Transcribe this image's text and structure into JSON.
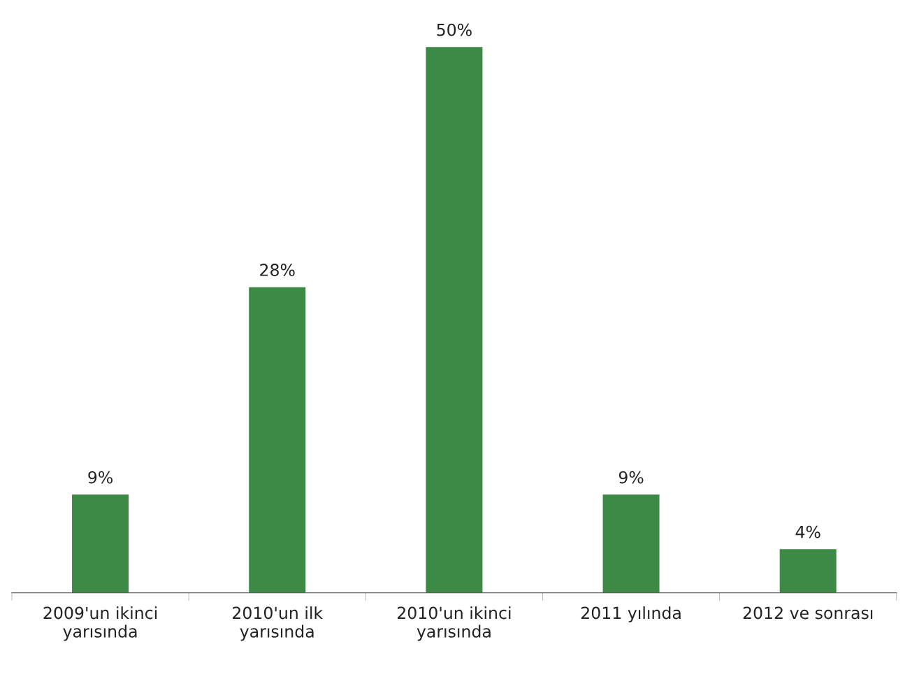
{
  "chart_data": {
    "type": "bar",
    "categories": [
      "2009'un ikinci\nyarısında",
      "2010'un ilk\nyarısında",
      "2010'un ikinci\nyarısında",
      "2011 yılında",
      "2012 ve sonrası"
    ],
    "values": [
      9,
      28,
      50,
      9,
      4
    ],
    "value_labels": [
      "9%",
      "28%",
      "50%",
      "9%",
      "4%"
    ],
    "color": "#3c8a45",
    "grid": false,
    "legend": false
  }
}
